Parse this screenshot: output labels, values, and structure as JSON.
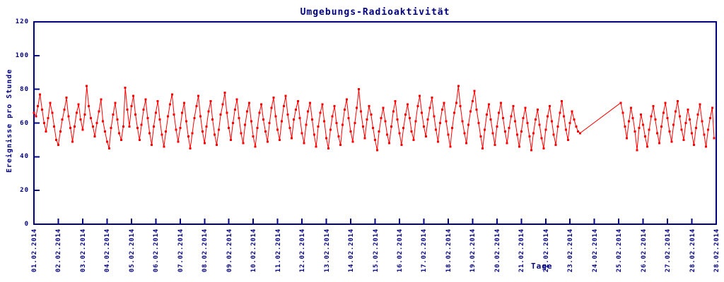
{
  "window": {
    "title": "Umgebungs-Radioaktivität"
  },
  "colors": {
    "axis": "#000080",
    "tick_text": "#000080",
    "series": "#ff0000",
    "background": "#ffffff"
  },
  "chart_data": {
    "type": "line",
    "title": "Umgebungs-Radioaktivität",
    "xlabel": "Tage",
    "ylabel": "Ereignisse pro Stunde",
    "ylim": [
      0,
      120
    ],
    "y_ticks": [
      0,
      20,
      40,
      60,
      80,
      100,
      120
    ],
    "grid": false,
    "legend": null,
    "marker": "square",
    "line_color": "#ff0000",
    "x_tick_labels": [
      "01.02.2014",
      "02.02.2014",
      "03.02.2014",
      "04.02.2014",
      "05.02.2014",
      "06.02.2014",
      "07.02.2014",
      "08.02.2014",
      "09.02.2014",
      "10.02.2014",
      "11.02.2014",
      "12.02.2014",
      "13.02.2014",
      "14.02.2014",
      "15.02.2014",
      "16.02.2014",
      "17.02.2014",
      "18.02.2014",
      "19.02.2014",
      "20.02.2014",
      "21.02.2014",
      "22.02.2014",
      "23.02.2014",
      "24.02.2014",
      "25.02.2014",
      "26.02.2014",
      "27.02.2014",
      "28.02.2014",
      "28.02.2014"
    ],
    "x_span_days": 28,
    "points_per_day": 12,
    "note_gap": "no samples between 23.02.2014 ~10:00 and 25.02.2014 ~02:00; line bridges gap",
    "values": [
      66,
      64,
      70,
      77,
      68,
      60,
      55,
      63,
      72,
      66,
      58,
      50,
      47,
      55,
      62,
      68,
      75,
      64,
      57,
      49,
      58,
      66,
      71,
      62,
      56,
      65,
      82,
      70,
      63,
      58,
      52,
      60,
      67,
      74,
      61,
      55,
      49,
      45,
      57,
      65,
      72,
      62,
      54,
      50,
      58,
      81,
      68,
      58,
      70,
      76,
      65,
      57,
      50,
      59,
      68,
      74,
      63,
      54,
      47,
      58,
      66,
      73,
      62,
      53,
      46,
      55,
      64,
      71,
      77,
      65,
      56,
      49,
      57,
      66,
      72,
      61,
      52,
      45,
      54,
      63,
      70,
      76,
      64,
      55,
      48,
      58,
      67,
      73,
      62,
      53,
      47,
      56,
      65,
      71,
      78,
      66,
      57,
      50,
      60,
      68,
      74,
      63,
      54,
      48,
      59,
      67,
      72,
      61,
      52,
      46,
      57,
      66,
      71,
      62,
      55,
      49,
      60,
      69,
      75,
      64,
      56,
      50,
      61,
      70,
      76,
      65,
      57,
      51,
      62,
      68,
      73,
      63,
      54,
      48,
      59,
      67,
      72,
      62,
      53,
      46,
      58,
      66,
      71,
      61,
      51,
      45,
      56,
      64,
      70,
      60,
      52,
      47,
      59,
      68,
      74,
      63,
      55,
      49,
      60,
      69,
      80,
      67,
      58,
      51,
      62,
      70,
      65,
      57,
      50,
      44,
      55,
      63,
      69,
      61,
      53,
      48,
      58,
      67,
      73,
      62,
      54,
      47,
      57,
      65,
      71,
      63,
      55,
      50,
      61,
      70,
      76,
      66,
      58,
      52,
      62,
      69,
      75,
      64,
      56,
      49,
      60,
      68,
      72,
      61,
      53,
      46,
      57,
      66,
      72,
      82,
      70,
      61,
      54,
      48,
      59,
      67,
      73,
      79,
      68,
      60,
      52,
      45,
      56,
      65,
      71,
      62,
      54,
      47,
      58,
      66,
      72,
      63,
      55,
      48,
      57,
      64,
      70,
      61,
      53,
      46,
      55,
      63,
      69,
      60,
      52,
      44,
      54,
      62,
      68,
      59,
      51,
      45,
      56,
      64,
      70,
      61,
      53,
      47,
      58,
      66,
      73,
      64,
      56,
      50,
      60,
      67,
      62,
      58,
      55,
      54,
      null,
      null,
      null,
      null,
      null,
      null,
      null,
      null,
      null,
      null,
      null,
      null,
      null,
      null,
      null,
      null,
      null,
      null,
      null,
      72,
      66,
      58,
      51,
      61,
      69,
      63,
      55,
      44,
      57,
      65,
      59,
      52,
      46,
      56,
      64,
      70,
      62,
      54,
      48,
      58,
      66,
      72,
      63,
      55,
      49,
      59,
      67,
      73,
      64,
      56,
      50,
      60,
      68,
      62,
      54,
      47,
      57,
      65,
      71,
      61,
      53,
      46,
      56,
      63,
      69,
      51
    ]
  }
}
